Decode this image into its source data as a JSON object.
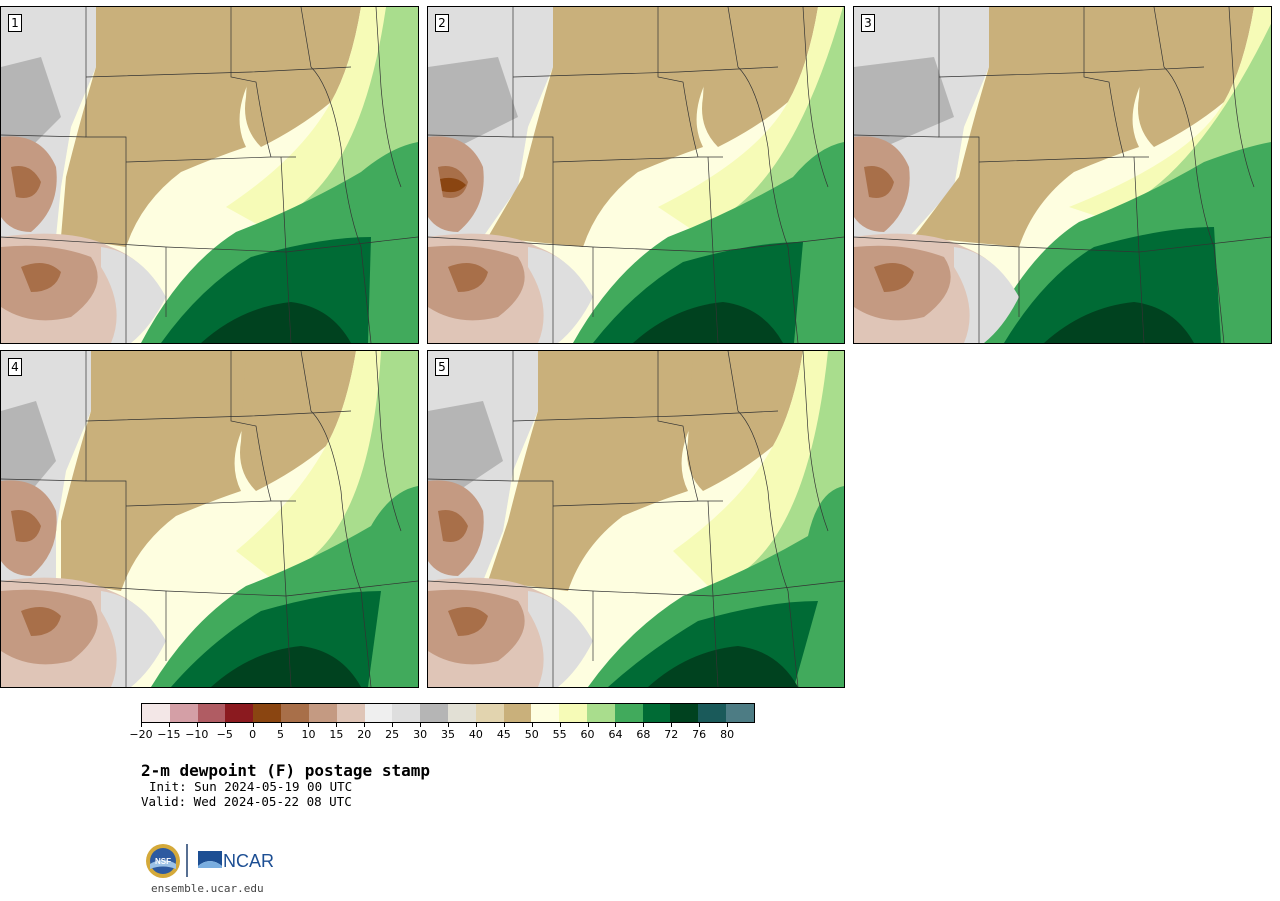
{
  "panels": [
    {
      "label": "1"
    },
    {
      "label": "2"
    },
    {
      "label": "3"
    },
    {
      "label": "4"
    },
    {
      "label": "5"
    }
  ],
  "colorbar": {
    "colors": [
      "#f3e7e7",
      "#d49fa6",
      "#b05c63",
      "#8b1a1f",
      "#8a4511",
      "#a86f49",
      "#c49a82",
      "#dfc5b7",
      "#efefef",
      "#dedede",
      "#b5b5b5",
      "#e2e0d5",
      "#e2d4af",
      "#c9b07b",
      "#fefee0",
      "#f6fbb7",
      "#a9dd8d",
      "#41aa5c",
      "#006b35",
      "#00421f",
      "#1a5a5a",
      "#4d7c84"
    ],
    "tick_labels": [
      "−20",
      "−15",
      "−10",
      "−5",
      "0",
      "5",
      "10",
      "15",
      "20",
      "25",
      "30",
      "35",
      "40",
      "45",
      "50",
      "55",
      "60",
      "64",
      "68",
      "72",
      "76",
      "80"
    ]
  },
  "title": "2-m dewpoint (F) postage stamp",
  "init": "Init: Sun 2024-05-19 00 UTC",
  "valid": "Valid: Wed 2024-05-22 08 UTC",
  "logos": {
    "nsf": "NSF",
    "ncar": "NCAR"
  },
  "website": "ensemble.ucar.edu"
}
